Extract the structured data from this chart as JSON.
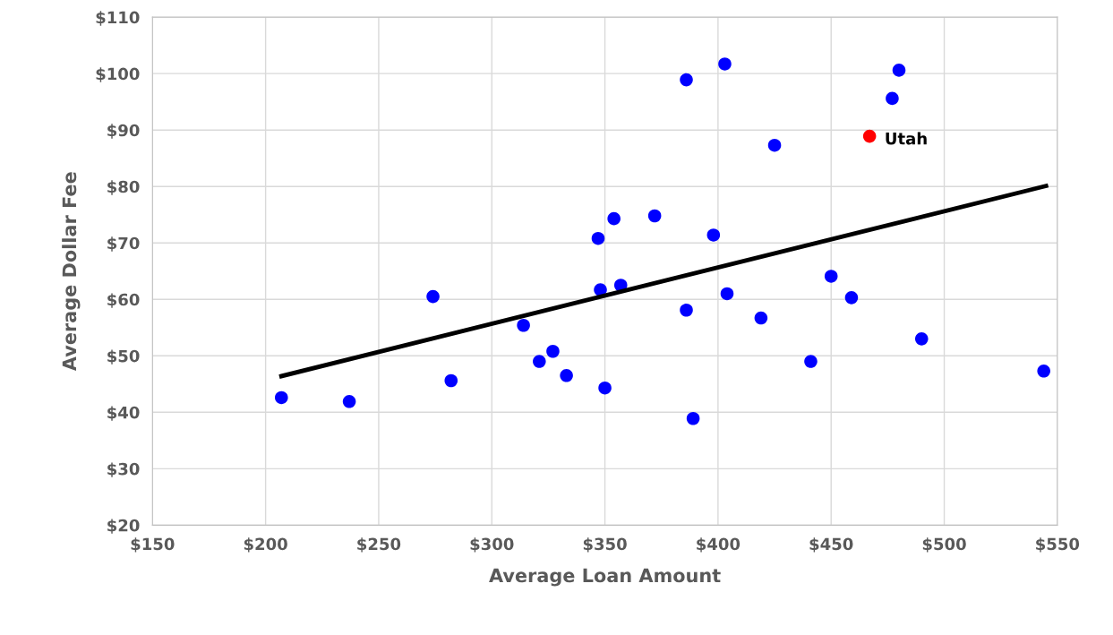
{
  "chart_data": {
    "type": "scatter",
    "xlabel": "Average Loan Amount",
    "ylabel": "Average Dollar Fee",
    "xlim": [
      150,
      550
    ],
    "ylim": [
      20,
      110
    ],
    "xticks": [
      {
        "value": 150,
        "label": "$150"
      },
      {
        "value": 200,
        "label": "$200"
      },
      {
        "value": 250,
        "label": "$250"
      },
      {
        "value": 300,
        "label": "$300"
      },
      {
        "value": 350,
        "label": "$350"
      },
      {
        "value": 400,
        "label": "$400"
      },
      {
        "value": 450,
        "label": "$450"
      },
      {
        "value": 500,
        "label": "$500"
      },
      {
        "value": 550,
        "label": "$550"
      }
    ],
    "yticks": [
      {
        "value": 20,
        "label": "$20"
      },
      {
        "value": 30,
        "label": "$30"
      },
      {
        "value": 40,
        "label": "$40"
      },
      {
        "value": 50,
        "label": "$50"
      },
      {
        "value": 60,
        "label": "$60"
      },
      {
        "value": 70,
        "label": "$70"
      },
      {
        "value": 80,
        "label": "$80"
      },
      {
        "value": 90,
        "label": "$90"
      },
      {
        "value": 100,
        "label": "$100"
      },
      {
        "value": 110,
        "label": "$110"
      }
    ],
    "grid": true,
    "marker": "circle",
    "series": [
      {
        "color": "#0000ff",
        "x": [
          207,
          237,
          274,
          282,
          314,
          321,
          327,
          333,
          347,
          348,
          350,
          354,
          357,
          372,
          386,
          386,
          389,
          398,
          403,
          404,
          419,
          425,
          441,
          450,
          459,
          477,
          480,
          490,
          544
        ],
        "values": [
          42.6,
          41.9,
          60.5,
          45.6,
          55.4,
          49.0,
          50.8,
          46.5,
          70.8,
          61.7,
          44.3,
          74.3,
          62.5,
          74.8,
          98.9,
          58.1,
          38.9,
          71.4,
          101.7,
          61.0,
          56.7,
          87.3,
          49.0,
          64.1,
          60.3,
          95.6,
          100.6,
          53.0,
          47.3
        ]
      },
      {
        "name": "Utah",
        "color": "#ff0000",
        "x": [
          467
        ],
        "values": [
          88.9
        ]
      },
      {
        "type": "line",
        "color": "#000000",
        "marker": "none",
        "line_style": "solid",
        "x": [
          207,
          545
        ],
        "values": [
          46.4,
          80.1
        ]
      }
    ]
  }
}
